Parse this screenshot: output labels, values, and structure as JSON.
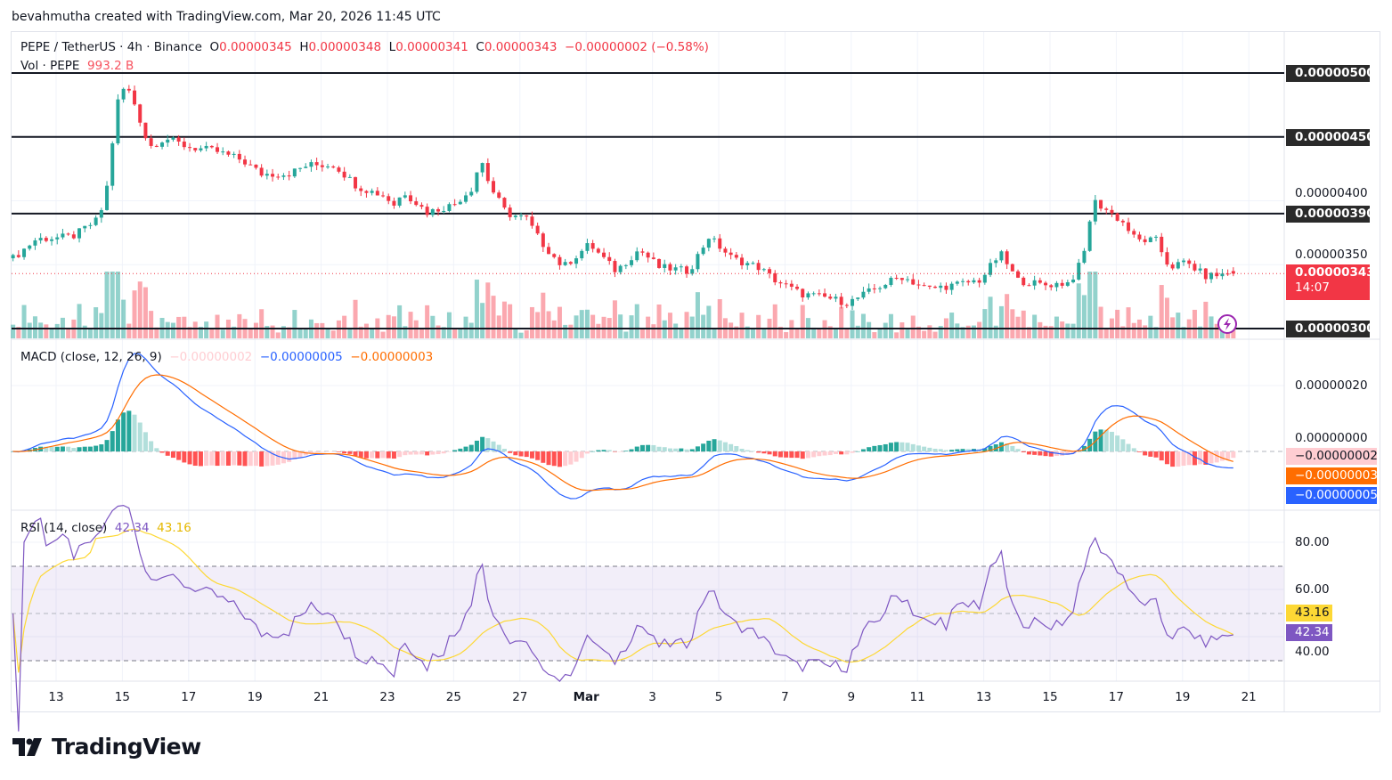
{
  "credit": "bevahmutha created with TradingView.com, Mar 20, 2026 11:45 UTC",
  "legend": {
    "symbol": "PEPE / TetherUS · 4h · Binance",
    "o_label": "O",
    "o": "0.00000345",
    "h_label": "H",
    "h": "0.00000348",
    "l_label": "L",
    "l": "0.00000341",
    "c_label": "C",
    "c": "0.00000343",
    "change": "−0.00000002 (−0.58%)",
    "vol_label": "Vol · PEPE",
    "vol": "993.2 B",
    "macd_label": "MACD (close, 12, 26, 9)",
    "macd_hist": "−0.00000002",
    "macd_line": "−0.00000005",
    "macd_signal": "−0.00000003",
    "rsi_label": "RSI (14, close)",
    "rsi": "42.34",
    "rsi_ma": "43.16"
  },
  "price_axis": {
    "labels": [
      "0.00000400",
      "0.00000350"
    ],
    "levels": [
      {
        "value": 5e-06,
        "text": "0.00000500"
      },
      {
        "value": 4.5e-06,
        "text": "0.00000450"
      },
      {
        "value": 3.9e-06,
        "text": "0.00000390"
      },
      {
        "value": 3e-06,
        "text": "0.00000300"
      }
    ],
    "last_price": "0.00000343",
    "countdown": "14:07"
  },
  "macd_axis": {
    "labels": [
      "0.00000020",
      "0.00000000"
    ],
    "hist": "−0.00000002",
    "signal": "−0.00000003",
    "macd": "−0.00000005"
  },
  "rsi_axis": {
    "labels": [
      "80.00",
      "60.00",
      "40.00"
    ],
    "ma": "43.16",
    "rsi": "42.34"
  },
  "time_axis": [
    "13",
    "15",
    "17",
    "19",
    "21",
    "23",
    "25",
    "27",
    "Mar",
    "3",
    "5",
    "7",
    "9",
    "11",
    "13",
    "15",
    "17",
    "19",
    "21"
  ],
  "logo": "TradingView",
  "colors": {
    "up": "#26a69a",
    "down": "#f23645",
    "macd": "#2962ff",
    "signal": "#ff6d00",
    "rsi": "#7e57c2",
    "rsi_ma": "#fdd835"
  },
  "chart_data": {
    "type": "candlestick",
    "title": "PEPE / TetherUS · 4h · Binance",
    "timeframe": "4h",
    "x_unit": "day of Feb 2026 (29 = Mar 1)",
    "ylim": [
      2.9e-06,
      5.2e-06
    ],
    "key_closes": [
      [
        11.7,
        355
      ],
      [
        12.4,
        370
      ],
      [
        13.5,
        372
      ],
      [
        14.3,
        386
      ],
      [
        14.6,
        418
      ],
      [
        14.8,
        474
      ],
      [
        15.1,
        491
      ],
      [
        15.4,
        474
      ],
      [
        15.8,
        442
      ],
      [
        16.3,
        449
      ],
      [
        17.0,
        442
      ],
      [
        17.8,
        439
      ],
      [
        18.6,
        432
      ],
      [
        19.2,
        421
      ],
      [
        20.0,
        421
      ],
      [
        20.6,
        428
      ],
      [
        21.4,
        428
      ],
      [
        22.1,
        411
      ],
      [
        22.9,
        404
      ],
      [
        23.2,
        397
      ],
      [
        23.5,
        407
      ],
      [
        24.2,
        391
      ],
      [
        25.0,
        397
      ],
      [
        25.6,
        411
      ],
      [
        25.8,
        435
      ],
      [
        26.1,
        411
      ],
      [
        26.6,
        390
      ],
      [
        27.2,
        386
      ],
      [
        27.6,
        369
      ],
      [
        28.3,
        348
      ],
      [
        29.1,
        366
      ],
      [
        29.9,
        345
      ],
      [
        30.6,
        362
      ],
      [
        31.2,
        348
      ],
      [
        32.1,
        345
      ],
      [
        32.7,
        372
      ],
      [
        33.4,
        355
      ],
      [
        34.2,
        348
      ],
      [
        34.7,
        338
      ],
      [
        35.5,
        327
      ],
      [
        36.3,
        324
      ],
      [
        36.9,
        320
      ],
      [
        37.7,
        331
      ],
      [
        38.5,
        341
      ],
      [
        39.3,
        331
      ],
      [
        40.1,
        334
      ],
      [
        40.9,
        338
      ],
      [
        41.5,
        359
      ],
      [
        42.0,
        338
      ],
      [
        42.8,
        334
      ],
      [
        43.6,
        336
      ],
      [
        44.0,
        355
      ],
      [
        44.3,
        400
      ],
      [
        44.7,
        393
      ],
      [
        45.2,
        383
      ],
      [
        45.6,
        369
      ],
      [
        46.2,
        369
      ],
      [
        46.6,
        348
      ],
      [
        47.1,
        352
      ],
      [
        47.7,
        341
      ],
      [
        48.5,
        343
      ]
    ],
    "price_scale_unit": 1e-08,
    "last_candle": {
      "open": 3.45e-06,
      "high": 3.48e-06,
      "low": 3.41e-06,
      "close": 3.43e-06,
      "volume": "993.2 B"
    },
    "indicators": {
      "macd": {
        "fast": 12,
        "slow": 26,
        "signal": 9,
        "last_hist": -2e-08,
        "last_macd": -5e-08,
        "last_signal": -3e-08
      },
      "rsi": {
        "length": 14,
        "last": 42.34,
        "ma_last": 43.16,
        "upper_band": 70,
        "lower_band": 30
      }
    }
  }
}
